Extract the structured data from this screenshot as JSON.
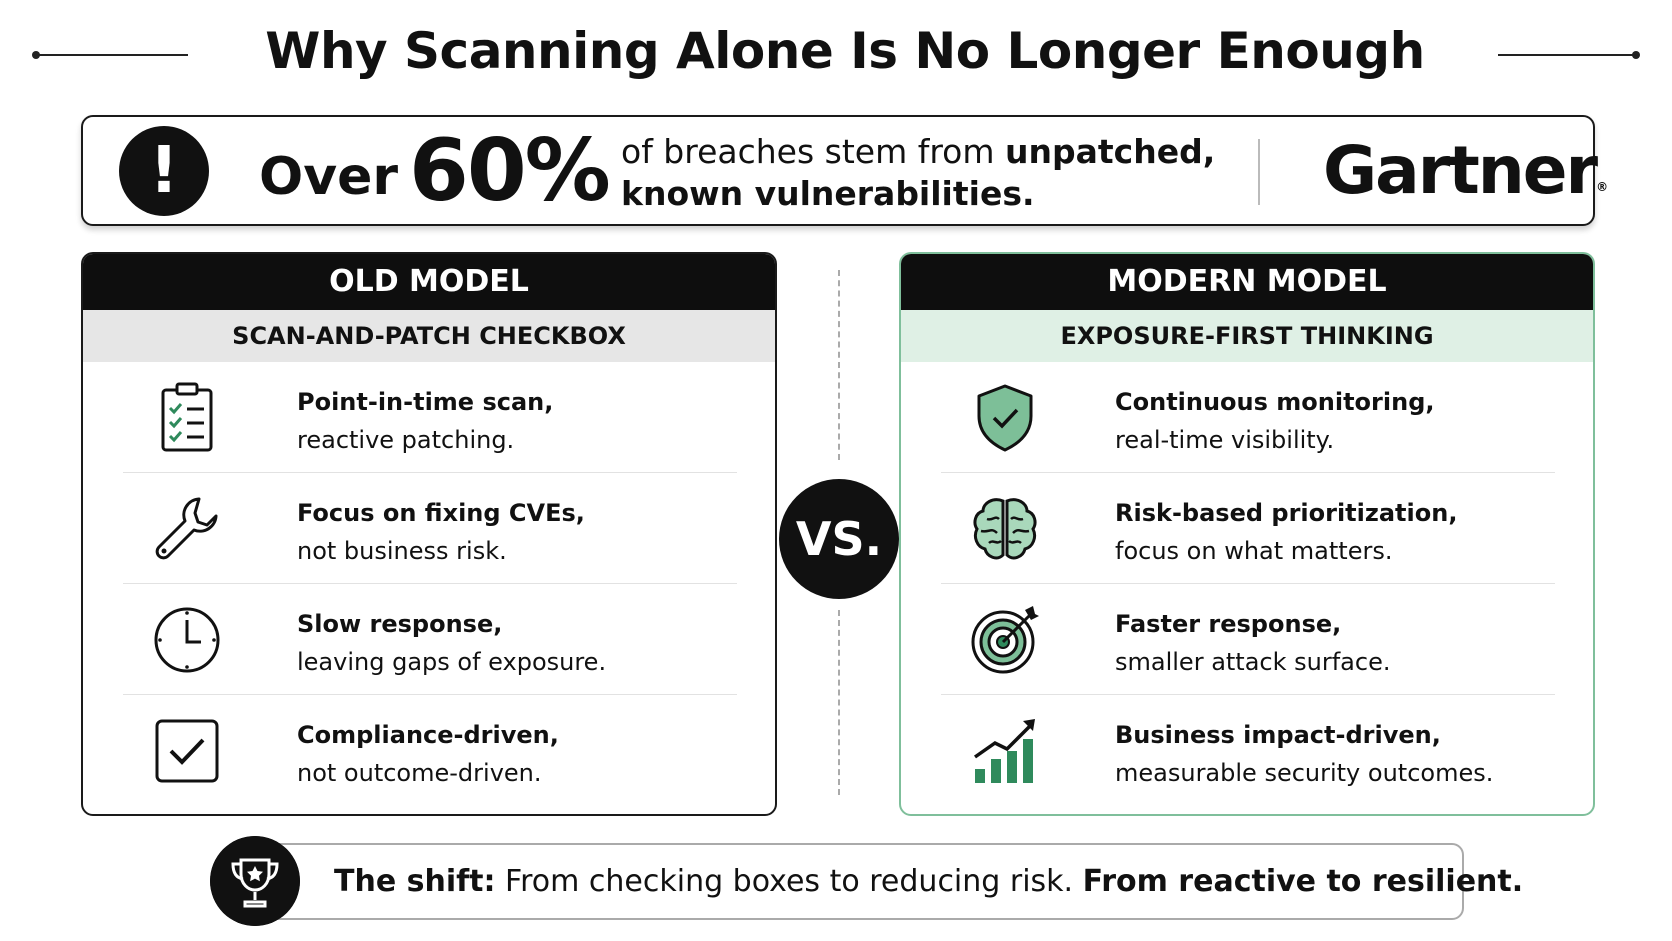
{
  "title": "Why Scanning Alone Is No Longer Enough",
  "stat": {
    "lead": "Over",
    "value": "60%",
    "text_plain": "of breaches stem from",
    "text_bold_1": "unpatched,",
    "text_bold_2": "known vulnerabilities.",
    "source": "Gartner",
    "source_mark": "®"
  },
  "old_model": {
    "header": "OLD MODEL",
    "subheader": "SCAN-AND-PATCH CHECKBOX",
    "items": [
      {
        "title": "Point-in-time scan,",
        "desc": "reactive patching.",
        "icon": "clipboard-checklist-icon"
      },
      {
        "title": "Focus on fixing CVEs,",
        "desc": "not business risk.",
        "icon": "wrench-icon"
      },
      {
        "title": "Slow response,",
        "desc": "leaving gaps of exposure.",
        "icon": "clock-icon"
      },
      {
        "title": "Compliance-driven,",
        "desc": "not outcome-driven.",
        "icon": "checkbox-icon"
      }
    ]
  },
  "modern_model": {
    "header": "MODERN MODEL",
    "subheader": "EXPOSURE-FIRST THINKING",
    "items": [
      {
        "title": "Continuous monitoring,",
        "desc": "real-time visibility.",
        "icon": "shield-check-icon"
      },
      {
        "title": "Risk-based prioritization,",
        "desc": "focus on what matters.",
        "icon": "brain-icon"
      },
      {
        "title": "Faster response,",
        "desc": "smaller attack surface.",
        "icon": "target-icon"
      },
      {
        "title": "Business impact-driven,",
        "desc": "measurable security outcomes.",
        "icon": "growth-chart-icon"
      }
    ]
  },
  "vs_label": "VS.",
  "shift": {
    "label": "The shift:",
    "text": "From checking boxes to reducing risk.",
    "bold_text": "From reactive to resilient.",
    "icon": "trophy-icon"
  },
  "colors": {
    "accent_green": "#2f8a5c",
    "light_green": "#dff0e5",
    "light_gray": "#e6e6e6",
    "dark": "#0e0e0e"
  }
}
